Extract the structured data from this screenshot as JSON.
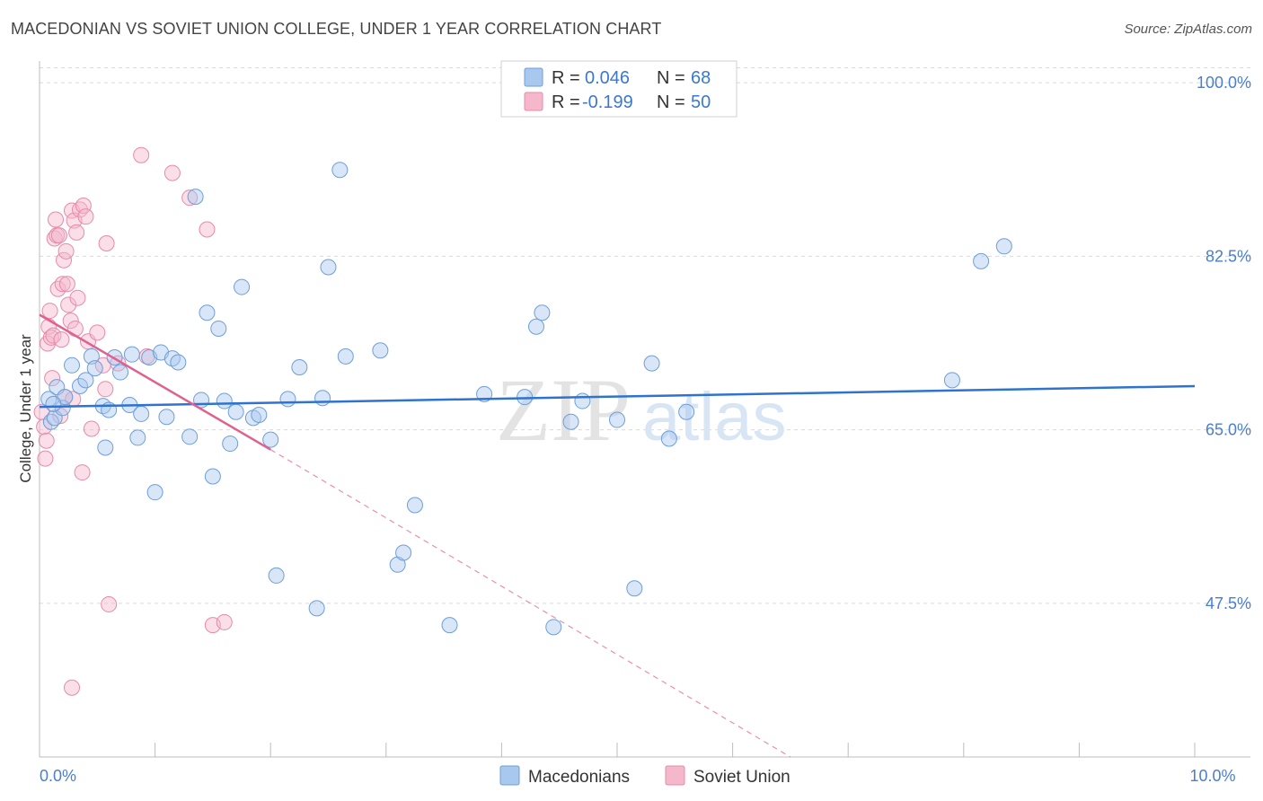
{
  "title": "MACEDONIAN VS SOVIET UNION COLLEGE, UNDER 1 YEAR CORRELATION CHART",
  "source": "Source: ZipAtlas.com",
  "watermark": {
    "zip": "ZIP",
    "atlas": "atlas"
  },
  "legend": {
    "rows": [
      {
        "r_label": "R =",
        "r_value": "0.046",
        "n_label": "N =",
        "n_value": "68",
        "color": "#a9c8ef"
      },
      {
        "r_label": "R =",
        "r_value": "-0.199",
        "n_label": "N =",
        "n_value": "50",
        "color": "#f5b8cb"
      }
    ]
  },
  "colors": {
    "blue_fill": "#a9c8ef",
    "blue_stroke": "#6d9fd9",
    "blue_line": "#2f73d0",
    "pink_fill": "#f5b8cb",
    "pink_stroke": "#e88aa8",
    "pink_line": "#e0608e",
    "grid": "#d9d9d9",
    "axis_text": "#4a7ed0"
  },
  "chart_data": {
    "type": "scatter",
    "xlabel": "",
    "ylabel": "College, Under 1 year",
    "xlim": [
      0,
      10
    ],
    "ylim": [
      32,
      102
    ],
    "x_tick_labels": [
      {
        "value": 0,
        "label": "0.0%"
      },
      {
        "value": 10,
        "label": "10.0%"
      }
    ],
    "y_tick_labels": [
      {
        "value": 100,
        "label": "100.0%"
      },
      {
        "value": 82.5,
        "label": "82.5%"
      },
      {
        "value": 65,
        "label": "65.0%"
      },
      {
        "value": 47.5,
        "label": "47.5%"
      }
    ],
    "grid": true,
    "series": [
      {
        "name": "Macedonians",
        "trend": {
          "x0": 0,
          "y0": 67.3,
          "x1": 10,
          "y1": 69.4
        },
        "points": [
          [
            0.08,
            68.1
          ],
          [
            0.1,
            65.8
          ],
          [
            0.13,
            66.2
          ],
          [
            0.15,
            69.3
          ],
          [
            0.2,
            67.2
          ],
          [
            0.22,
            68.3
          ],
          [
            0.28,
            71.5
          ],
          [
            0.35,
            69.4
          ],
          [
            0.4,
            70.0
          ],
          [
            0.45,
            72.4
          ],
          [
            0.48,
            71.2
          ],
          [
            0.55,
            67.4
          ],
          [
            0.57,
            63.2
          ],
          [
            0.6,
            67.0
          ],
          [
            0.65,
            72.3
          ],
          [
            0.7,
            70.8
          ],
          [
            0.78,
            67.5
          ],
          [
            0.8,
            72.6
          ],
          [
            0.85,
            64.2
          ],
          [
            0.88,
            66.6
          ],
          [
            0.95,
            72.3
          ],
          [
            1.0,
            58.7
          ],
          [
            1.05,
            72.8
          ],
          [
            1.1,
            66.3
          ],
          [
            1.15,
            72.2
          ],
          [
            1.2,
            71.8
          ],
          [
            1.3,
            64.3
          ],
          [
            1.35,
            88.5
          ],
          [
            1.4,
            68.0
          ],
          [
            1.45,
            76.8
          ],
          [
            1.5,
            60.3
          ],
          [
            1.55,
            75.2
          ],
          [
            1.6,
            67.9
          ],
          [
            1.65,
            63.6
          ],
          [
            1.7,
            66.8
          ],
          [
            1.75,
            79.4
          ],
          [
            1.85,
            66.2
          ],
          [
            1.9,
            66.5
          ],
          [
            2.0,
            64.0
          ],
          [
            2.05,
            50.3
          ],
          [
            2.15,
            68.1
          ],
          [
            2.25,
            71.3
          ],
          [
            2.4,
            47.0
          ],
          [
            2.45,
            68.2
          ],
          [
            2.5,
            81.4
          ],
          [
            2.6,
            91.2
          ],
          [
            2.65,
            72.4
          ],
          [
            2.95,
            73.0
          ],
          [
            3.1,
            51.4
          ],
          [
            3.15,
            52.6
          ],
          [
            3.25,
            57.4
          ],
          [
            3.55,
            45.3
          ],
          [
            3.85,
            68.6
          ],
          [
            4.2,
            68.3
          ],
          [
            4.3,
            75.4
          ],
          [
            4.35,
            76.8
          ],
          [
            4.45,
            45.1
          ],
          [
            4.6,
            65.8
          ],
          [
            4.7,
            67.9
          ],
          [
            5.0,
            66.0
          ],
          [
            5.15,
            49.0
          ],
          [
            5.3,
            71.7
          ],
          [
            5.45,
            64.1
          ],
          [
            5.6,
            66.8
          ],
          [
            7.9,
            70.0
          ],
          [
            8.15,
            82.0
          ],
          [
            8.35,
            83.5
          ],
          [
            0.12,
            67.6
          ]
        ]
      },
      {
        "name": "Soviet Union",
        "trend": {
          "x0": 0,
          "y0": 76.6,
          "x1": 2.0,
          "y1": 63.0,
          "dash_x1": 6.5,
          "dash_y1": 32
        },
        "points": [
          [
            0.02,
            66.8
          ],
          [
            0.04,
            65.3
          ],
          [
            0.05,
            62.1
          ],
          [
            0.06,
            63.9
          ],
          [
            0.07,
            73.7
          ],
          [
            0.08,
            75.4
          ],
          [
            0.09,
            77.0
          ],
          [
            0.1,
            74.3
          ],
          [
            0.11,
            70.2
          ],
          [
            0.12,
            74.5
          ],
          [
            0.13,
            84.3
          ],
          [
            0.14,
            86.2
          ],
          [
            0.15,
            84.6
          ],
          [
            0.16,
            79.2
          ],
          [
            0.17,
            84.6
          ],
          [
            0.18,
            66.4
          ],
          [
            0.19,
            74.1
          ],
          [
            0.2,
            79.7
          ],
          [
            0.21,
            82.1
          ],
          [
            0.22,
            68.3
          ],
          [
            0.23,
            83.0
          ],
          [
            0.24,
            79.7
          ],
          [
            0.25,
            77.6
          ],
          [
            0.27,
            76.0
          ],
          [
            0.28,
            87.1
          ],
          [
            0.29,
            68.1
          ],
          [
            0.3,
            86.1
          ],
          [
            0.31,
            75.2
          ],
          [
            0.32,
            84.9
          ],
          [
            0.33,
            78.3
          ],
          [
            0.35,
            87.2
          ],
          [
            0.37,
            60.7
          ],
          [
            0.38,
            87.6
          ],
          [
            0.4,
            86.5
          ],
          [
            0.42,
            73.9
          ],
          [
            0.45,
            65.1
          ],
          [
            0.5,
            74.8
          ],
          [
            0.55,
            71.5
          ],
          [
            0.57,
            69.1
          ],
          [
            0.58,
            83.8
          ],
          [
            0.6,
            47.4
          ],
          [
            0.28,
            39.0
          ],
          [
            0.68,
            71.7
          ],
          [
            0.88,
            92.7
          ],
          [
            0.93,
            72.4
          ],
          [
            1.15,
            90.9
          ],
          [
            1.3,
            88.4
          ],
          [
            1.45,
            85.2
          ],
          [
            1.5,
            45.3
          ],
          [
            1.6,
            45.6
          ]
        ]
      }
    ]
  }
}
